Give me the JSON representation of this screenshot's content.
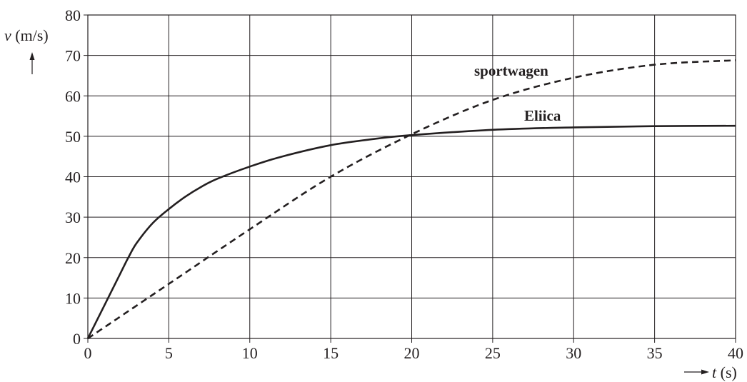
{
  "chart_data": {
    "type": "line",
    "xlabel": {
      "symbol": "t",
      "unit": " (s)"
    },
    "ylabel": {
      "symbol": "v",
      "unit": " (m/s)"
    },
    "xlim": [
      0,
      40
    ],
    "ylim": [
      0,
      80
    ],
    "xticks": [
      "0",
      "5",
      "10",
      "15",
      "20",
      "25",
      "30",
      "35",
      "40"
    ],
    "yticks": [
      "0",
      "10",
      "20",
      "30",
      "40",
      "50",
      "60",
      "70",
      "80"
    ],
    "grid": true,
    "series": [
      {
        "name": "Eliica",
        "style": "solid",
        "x": [
          0,
          1,
          2,
          2.5,
          3,
          4,
          5,
          6,
          7,
          8,
          10,
          12,
          15,
          18,
          20,
          25,
          30,
          35,
          40
        ],
        "y": [
          0,
          8,
          16,
          20,
          23.5,
          28.5,
          32,
          35,
          37.5,
          39.5,
          42.5,
          45,
          47.8,
          49.5,
          50.3,
          51.6,
          52.2,
          52.5,
          52.6
        ]
      },
      {
        "name": "sportwagen",
        "style": "dashed",
        "x": [
          0,
          5,
          10,
          15,
          20,
          25,
          30,
          35,
          40
        ],
        "y": [
          0,
          13.5,
          27,
          40,
          50.5,
          59,
          64.5,
          67.7,
          68.8
        ]
      }
    ]
  }
}
